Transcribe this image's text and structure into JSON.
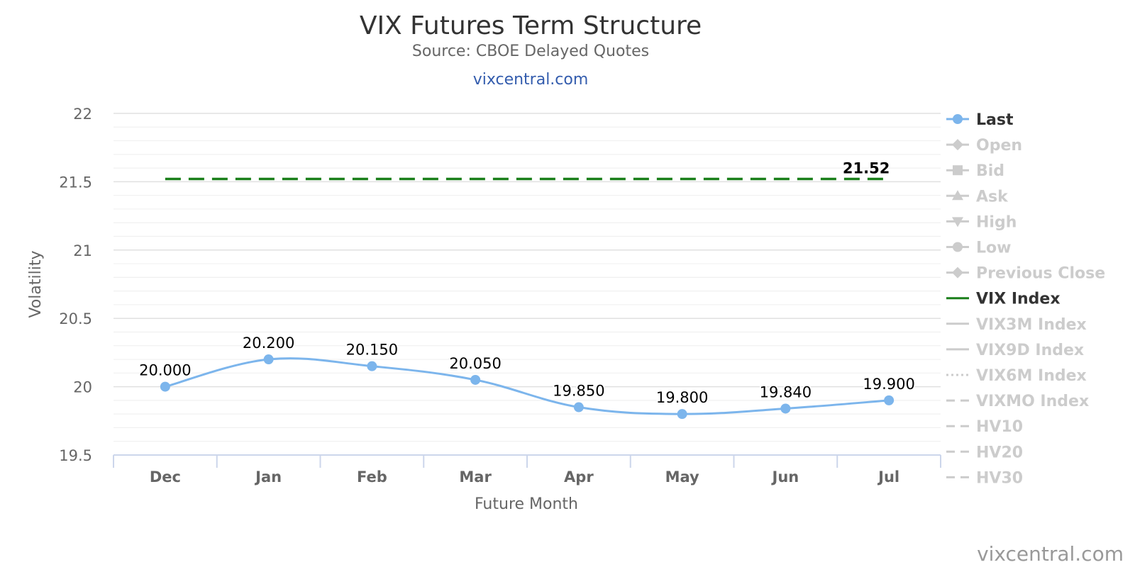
{
  "chart_data": {
    "type": "line",
    "title": "VIX Futures Term Structure",
    "subtitle": "Source: CBOE Delayed Quotes",
    "link": "vixcentral.com",
    "credit": "vixcentral.com",
    "xlabel": "Future Month",
    "ylabel": "Volatility",
    "ylim": [
      19.5,
      22
    ],
    "yticks": [
      19.5,
      20,
      20.5,
      21,
      21.5,
      22
    ],
    "ytick_labels": [
      "19.5",
      "20",
      "20.5",
      "21",
      "21.5",
      "22"
    ],
    "categories": [
      "Dec",
      "Jan",
      "Feb",
      "Mar",
      "Apr",
      "May",
      "Jun",
      "Jul"
    ],
    "series": [
      {
        "name": "Last",
        "color": "#7cb5ec",
        "values": [
          20.0,
          20.2,
          20.15,
          20.05,
          19.85,
          19.8,
          19.84,
          19.9
        ],
        "labels": [
          "20.000",
          "20.200",
          "20.150",
          "20.050",
          "19.850",
          "19.800",
          "19.840",
          "19.900"
        ]
      },
      {
        "name": "VIX Index",
        "color": "#1a7f1a",
        "style": "dashed",
        "value": 21.52,
        "label": "21.52"
      }
    ],
    "legend": {
      "placement": "right",
      "items": [
        {
          "label": "Last",
          "active": true,
          "symbol": "circle",
          "color": "#7cb5ec"
        },
        {
          "label": "Open",
          "active": false,
          "symbol": "diamond"
        },
        {
          "label": "Bid",
          "active": false,
          "symbol": "square"
        },
        {
          "label": "Ask",
          "active": false,
          "symbol": "triangle"
        },
        {
          "label": "High",
          "active": false,
          "symbol": "triangle-down"
        },
        {
          "label": "Low",
          "active": false,
          "symbol": "circle"
        },
        {
          "label": "Previous Close",
          "active": false,
          "symbol": "diamond"
        },
        {
          "label": "VIX Index",
          "active": true,
          "symbol": "line",
          "color": "#1a7f1a"
        },
        {
          "label": "VIX3M Index",
          "active": false,
          "symbol": "line"
        },
        {
          "label": "VIX9D Index",
          "active": false,
          "symbol": "line"
        },
        {
          "label": "VIX6M Index",
          "active": false,
          "symbol": "dotted"
        },
        {
          "label": "VIXMO Index",
          "active": false,
          "symbol": "dashed"
        },
        {
          "label": "HV10",
          "active": false,
          "symbol": "dashed"
        },
        {
          "label": "HV20",
          "active": false,
          "symbol": "dashed"
        },
        {
          "label": "HV30",
          "active": false,
          "symbol": "dashed"
        }
      ]
    },
    "grid": true
  }
}
